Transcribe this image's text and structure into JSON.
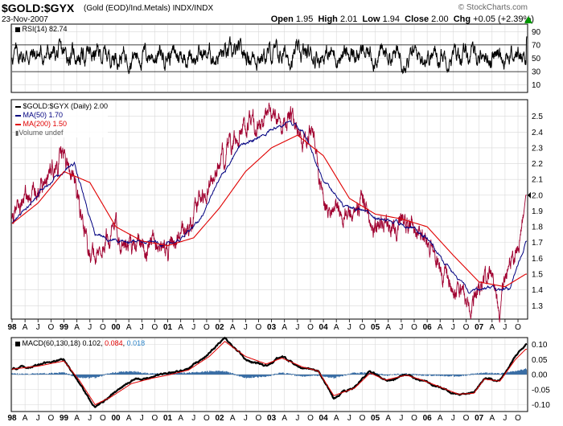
{
  "header": {
    "symbol": "$GOLD:$GYX",
    "description": "(Gold (EOD)/Ind.Metals)  INDX/INDX",
    "date": "23-Nov-2007",
    "brand": "© StockCharts.com",
    "open_label": "Open",
    "open": "1.95",
    "high_label": "High",
    "high": "2.01",
    "low_label": "Low",
    "low": "1.94",
    "close_label": "Close",
    "close": "2.00",
    "chg_label": "Chg",
    "chg": "+0.05 (+2.39%)",
    "up_arrow_color": "#009900"
  },
  "rsi_panel": {
    "label": "RSI(14) 82.74",
    "ticks": [
      "90",
      "70",
      "50",
      "30",
      "10"
    ],
    "overbought": 70,
    "oversold": 30,
    "color": "#000000"
  },
  "price_panel": {
    "legend": {
      "price": "$GOLD:$GYX (Daily) 2.00",
      "ma50": "MA(50) 1.70",
      "ma200": "MA(200) 1.50",
      "volume": "Volume undef"
    },
    "colors": {
      "price": "#a00030",
      "ma50": "#000080",
      "ma200": "#e00000",
      "last_value_marker": "#ffffff"
    },
    "last_value": "2.00",
    "yticks": [
      "2.5",
      "2.4",
      "2.3",
      "2.2",
      "2.1",
      "2.0",
      "1.9",
      "1.8",
      "1.7",
      "1.6",
      "1.5",
      "1.4",
      "1.3"
    ]
  },
  "macd_panel": {
    "label": "MACD(60,130,18) 0.102,",
    "signal_value": "0.084",
    "hist_value": "0.018",
    "colors": {
      "macd": "#000000",
      "signal": "#e00000",
      "hist": "#3a6ea5",
      "label_signal": "#e00000",
      "label_hist": "#2c84c8"
    },
    "yticks": [
      "0.10",
      "0.05",
      "0.00",
      "-0.05",
      "-0.10"
    ]
  },
  "time_axis": {
    "labels": [
      "98",
      "A",
      "J",
      "O",
      "99",
      "A",
      "J",
      "O",
      "00",
      "A",
      "J",
      "O",
      "01",
      "A",
      "J",
      "O",
      "02",
      "A",
      "J",
      "O",
      "03",
      "A",
      "J",
      "O",
      "04",
      "A",
      "J",
      "O",
      "05",
      "A",
      "J",
      "O",
      "06",
      "A",
      "J",
      "O",
      "07",
      "A",
      "J",
      "O"
    ]
  },
  "chart_data": {
    "type": "line",
    "x_range": [
      "1998-01",
      "2007-11"
    ],
    "price": {
      "name": "$GOLD:$GYX (Daily)",
      "x": [
        1998.0,
        1998.2,
        1998.4,
        1998.6,
        1998.8,
        1999.0,
        1999.2,
        1999.4,
        1999.6,
        1999.8,
        2000.0,
        2000.2,
        2000.4,
        2000.6,
        2000.8,
        2001.0,
        2001.2,
        2001.4,
        2001.6,
        2001.8,
        2002.0,
        2002.2,
        2002.4,
        2002.6,
        2002.8,
        2003.0,
        2003.2,
        2003.4,
        2003.6,
        2003.8,
        2004.0,
        2004.2,
        2004.4,
        2004.6,
        2004.8,
        2005.0,
        2005.2,
        2005.4,
        2005.6,
        2005.8,
        2006.0,
        2006.2,
        2006.4,
        2006.6,
        2006.8,
        2007.0,
        2007.2,
        2007.4,
        2007.6,
        2007.8,
        2007.9
      ],
      "values": [
        1.83,
        1.95,
        2.02,
        2.1,
        2.18,
        2.26,
        2.1,
        1.75,
        1.6,
        1.7,
        1.78,
        1.68,
        1.7,
        1.66,
        1.73,
        1.65,
        1.72,
        1.8,
        1.95,
        2.05,
        2.2,
        2.3,
        2.4,
        2.46,
        2.42,
        2.55,
        2.45,
        2.48,
        2.4,
        2.42,
        1.95,
        1.92,
        1.9,
        1.93,
        1.95,
        1.78,
        1.82,
        1.8,
        1.85,
        1.8,
        1.72,
        1.58,
        1.42,
        1.35,
        1.3,
        1.43,
        1.5,
        1.32,
        1.55,
        1.7,
        2.0
      ]
    },
    "ma50": {
      "name": "MA(50)",
      "x": [
        1998.0,
        1998.4,
        1998.8,
        1999.2,
        1999.6,
        2000.0,
        2000.4,
        2000.8,
        2001.2,
        2001.6,
        2002.0,
        2002.4,
        2002.8,
        2003.2,
        2003.6,
        2004.0,
        2004.4,
        2004.8,
        2005.2,
        2005.6,
        2006.0,
        2006.4,
        2006.8,
        2007.2,
        2007.6,
        2007.9
      ],
      "values": [
        1.82,
        1.95,
        2.12,
        2.2,
        1.75,
        1.72,
        1.7,
        1.69,
        1.7,
        1.83,
        2.1,
        2.3,
        2.38,
        2.45,
        2.42,
        2.1,
        1.92,
        1.9,
        1.83,
        1.82,
        1.74,
        1.55,
        1.38,
        1.4,
        1.4,
        1.7
      ]
    },
    "ma200": {
      "name": "MA(200)",
      "x": [
        1998.0,
        1998.5,
        1999.0,
        1999.5,
        2000.0,
        2000.5,
        2001.0,
        2001.5,
        2002.0,
        2002.5,
        2003.0,
        2003.5,
        2004.0,
        2004.5,
        2005.0,
        2005.5,
        2006.0,
        2006.5,
        2007.0,
        2007.5,
        2007.9
      ],
      "values": [
        1.82,
        1.95,
        2.15,
        2.08,
        1.8,
        1.71,
        1.68,
        1.73,
        1.92,
        2.15,
        2.3,
        2.38,
        2.25,
        1.98,
        1.88,
        1.85,
        1.8,
        1.62,
        1.45,
        1.42,
        1.5
      ],
      "note": ""
    },
    "rsi": {
      "name": "RSI(14)",
      "ylim": [
        0,
        100
      ],
      "last": 82.74
    },
    "macd": {
      "name": "MACD(60,130,18)",
      "x": [
        1998.0,
        1998.5,
        1999.0,
        1999.3,
        1999.6,
        1999.9,
        2000.3,
        2000.7,
        2001.0,
        2001.4,
        2001.8,
        2002.1,
        2002.5,
        2002.9,
        2003.2,
        2003.6,
        2003.9,
        2004.2,
        2004.6,
        2004.9,
        2005.2,
        2005.6,
        2005.9,
        2006.2,
        2006.6,
        2006.9,
        2007.1,
        2007.4,
        2007.7,
        2007.9
      ],
      "macd": [
        0.02,
        0.03,
        0.05,
        -0.03,
        -0.11,
        -0.07,
        -0.02,
        -0.01,
        0.0,
        0.02,
        0.07,
        0.12,
        0.05,
        0.03,
        0.06,
        0.02,
        0.01,
        -0.08,
        -0.04,
        0.01,
        -0.02,
        0.0,
        -0.02,
        -0.04,
        -0.07,
        -0.06,
        -0.01,
        -0.02,
        0.06,
        0.102
      ],
      "signal": [
        0.018,
        0.028,
        0.045,
        -0.02,
        -0.1,
        -0.075,
        -0.03,
        -0.012,
        -0.002,
        0.015,
        0.06,
        0.11,
        0.06,
        0.035,
        0.055,
        0.025,
        0.012,
        -0.07,
        -0.045,
        0.005,
        -0.018,
        -0.002,
        -0.018,
        -0.038,
        -0.065,
        -0.062,
        -0.015,
        -0.022,
        0.05,
        0.084
      ],
      "ylim": [
        -0.12,
        0.12
      ]
    }
  }
}
